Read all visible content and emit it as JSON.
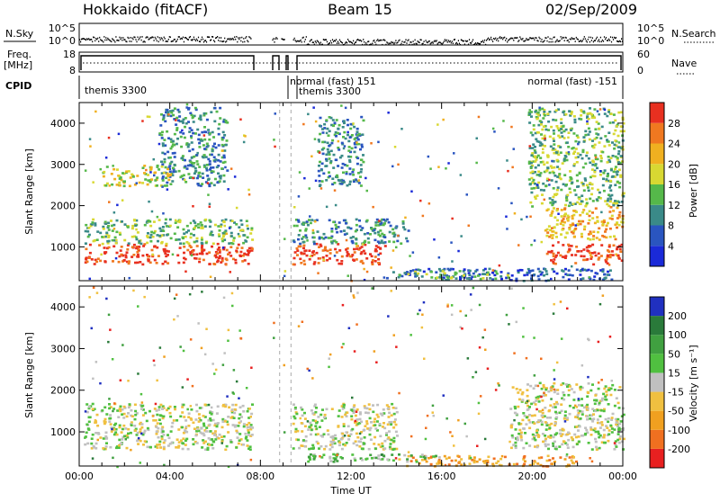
{
  "header": {
    "station": "Hokkaido (fitACF)",
    "beam": "Beam 15",
    "date": "02/Sep/2009"
  },
  "summary_panel": {
    "nsky_label": "N.Sky",
    "nsky_ticks": [
      "10^5",
      "10^0"
    ],
    "nsearch_label": "N.Search",
    "nsearch_ticks": [
      "10^5",
      "10^0"
    ],
    "freq_label_line1": "Freq.",
    "freq_label_line2": "[MHz]",
    "freq_ticks": [
      "18",
      "8"
    ],
    "nave_label": "Nave",
    "nave_ticks": [
      "60",
      "0"
    ],
    "cpid_label": "CPID",
    "cpid_entries": [
      {
        "text": "themis 3300",
        "start_hour": 0.1
      },
      {
        "text": "normal (fast) 151",
        "start_hour": 9.35
      },
      {
        "text": "themis 3300",
        "start_hour": 9.4
      },
      {
        "text": "normal (fast) -151",
        "start_hour": 19.2
      }
    ]
  },
  "chart_data": [
    {
      "type": "heatmap",
      "name": "Power",
      "ylabel": "Slant Range [km]",
      "xlim": [
        0,
        24
      ],
      "ylim": [
        180,
        4500
      ],
      "yticks": [
        "1000",
        "2000",
        "3000",
        "4000"
      ],
      "colorbar_label": "Power [dB]",
      "colorbar_ticks": [
        "4",
        "8",
        "12",
        "16",
        "20",
        "24",
        "28"
      ],
      "colorbar_range": [
        0,
        32
      ],
      "colors": [
        "#1a2ad8",
        "#2a55c0",
        "#3a8a88",
        "#55b84a",
        "#d8d832",
        "#f0b020",
        "#f07820",
        "#e83020"
      ],
      "data_gaps_hours": [
        [
          7.6,
          8.5
        ],
        [
          8.75,
          8.9
        ],
        [
          9.05,
          9.4
        ]
      ],
      "regions": [
        {
          "t": [
            0.2,
            7.6
          ],
          "r": [
            600,
            1100
          ],
          "level": 7
        },
        {
          "t": [
            9.4,
            13.5
          ],
          "r": [
            600,
            1100
          ],
          "level": 7
        },
        {
          "t": [
            20.6,
            24
          ],
          "r": [
            600,
            1100
          ],
          "level": 7
        },
        {
          "t": [
            0.2,
            7.6
          ],
          "r": [
            1100,
            1700
          ],
          "level": 3
        },
        {
          "t": [
            9.4,
            14.5
          ],
          "r": [
            1100,
            1700
          ],
          "level": 2
        },
        {
          "t": [
            13.5,
            23.5
          ],
          "r": [
            200,
            500
          ],
          "level": 1
        },
        {
          "t": [
            14.0,
            19.0
          ],
          "r": [
            250,
            450
          ],
          "level": 3
        },
        {
          "t": [
            3.5,
            6.5
          ],
          "r": [
            2500,
            4400
          ],
          "level": 2
        },
        {
          "t": [
            1.0,
            4.0
          ],
          "r": [
            2500,
            3000
          ],
          "level": 4
        },
        {
          "t": [
            10.5,
            12.5
          ],
          "r": [
            2500,
            4200
          ],
          "level": 2
        },
        {
          "t": [
            19.8,
            24
          ],
          "r": [
            2000,
            4400
          ],
          "level": 3
        },
        {
          "t": [
            20.5,
            24
          ],
          "r": [
            1200,
            2000
          ],
          "level": 5
        }
      ]
    },
    {
      "type": "heatmap",
      "name": "Velocity",
      "xlabel": "Time UT",
      "ylabel": "Slant Range [km]",
      "xlim": [
        0,
        24
      ],
      "ylim": [
        180,
        4500
      ],
      "xticks": [
        "00:00",
        "04:00",
        "08:00",
        "12:00",
        "16:00",
        "20:00",
        "00:00"
      ],
      "yticks": [
        "1000",
        "2000",
        "3000",
        "4000"
      ],
      "colorbar_label": "Velocity [m s⁻¹]",
      "colorbar_ticks": [
        "200",
        "100",
        "50",
        "15",
        "-15",
        "-50",
        "-100",
        "-200"
      ],
      "colorbar_range": [
        -250,
        250
      ],
      "colors": [
        "#e82020",
        "#f07020",
        "#f0a020",
        "#f0c040",
        "#c0c0c0",
        "#50c040",
        "#40a040",
        "#2a7a3a",
        "#2030c0"
      ],
      "regions": [
        {
          "t": [
            0.2,
            7.6
          ],
          "r": [
            600,
            1700
          ],
          "level": 4
        },
        {
          "t": [
            9.4,
            14.0
          ],
          "r": [
            600,
            1700
          ],
          "level": 4
        },
        {
          "t": [
            19.0,
            24
          ],
          "r": [
            600,
            2200
          ],
          "level": 4
        },
        {
          "t": [
            14.0,
            22.0
          ],
          "r": [
            200,
            450
          ],
          "level": 2
        },
        {
          "t": [
            10.0,
            16.0
          ],
          "r": [
            300,
            500
          ],
          "level": 5
        }
      ]
    }
  ]
}
